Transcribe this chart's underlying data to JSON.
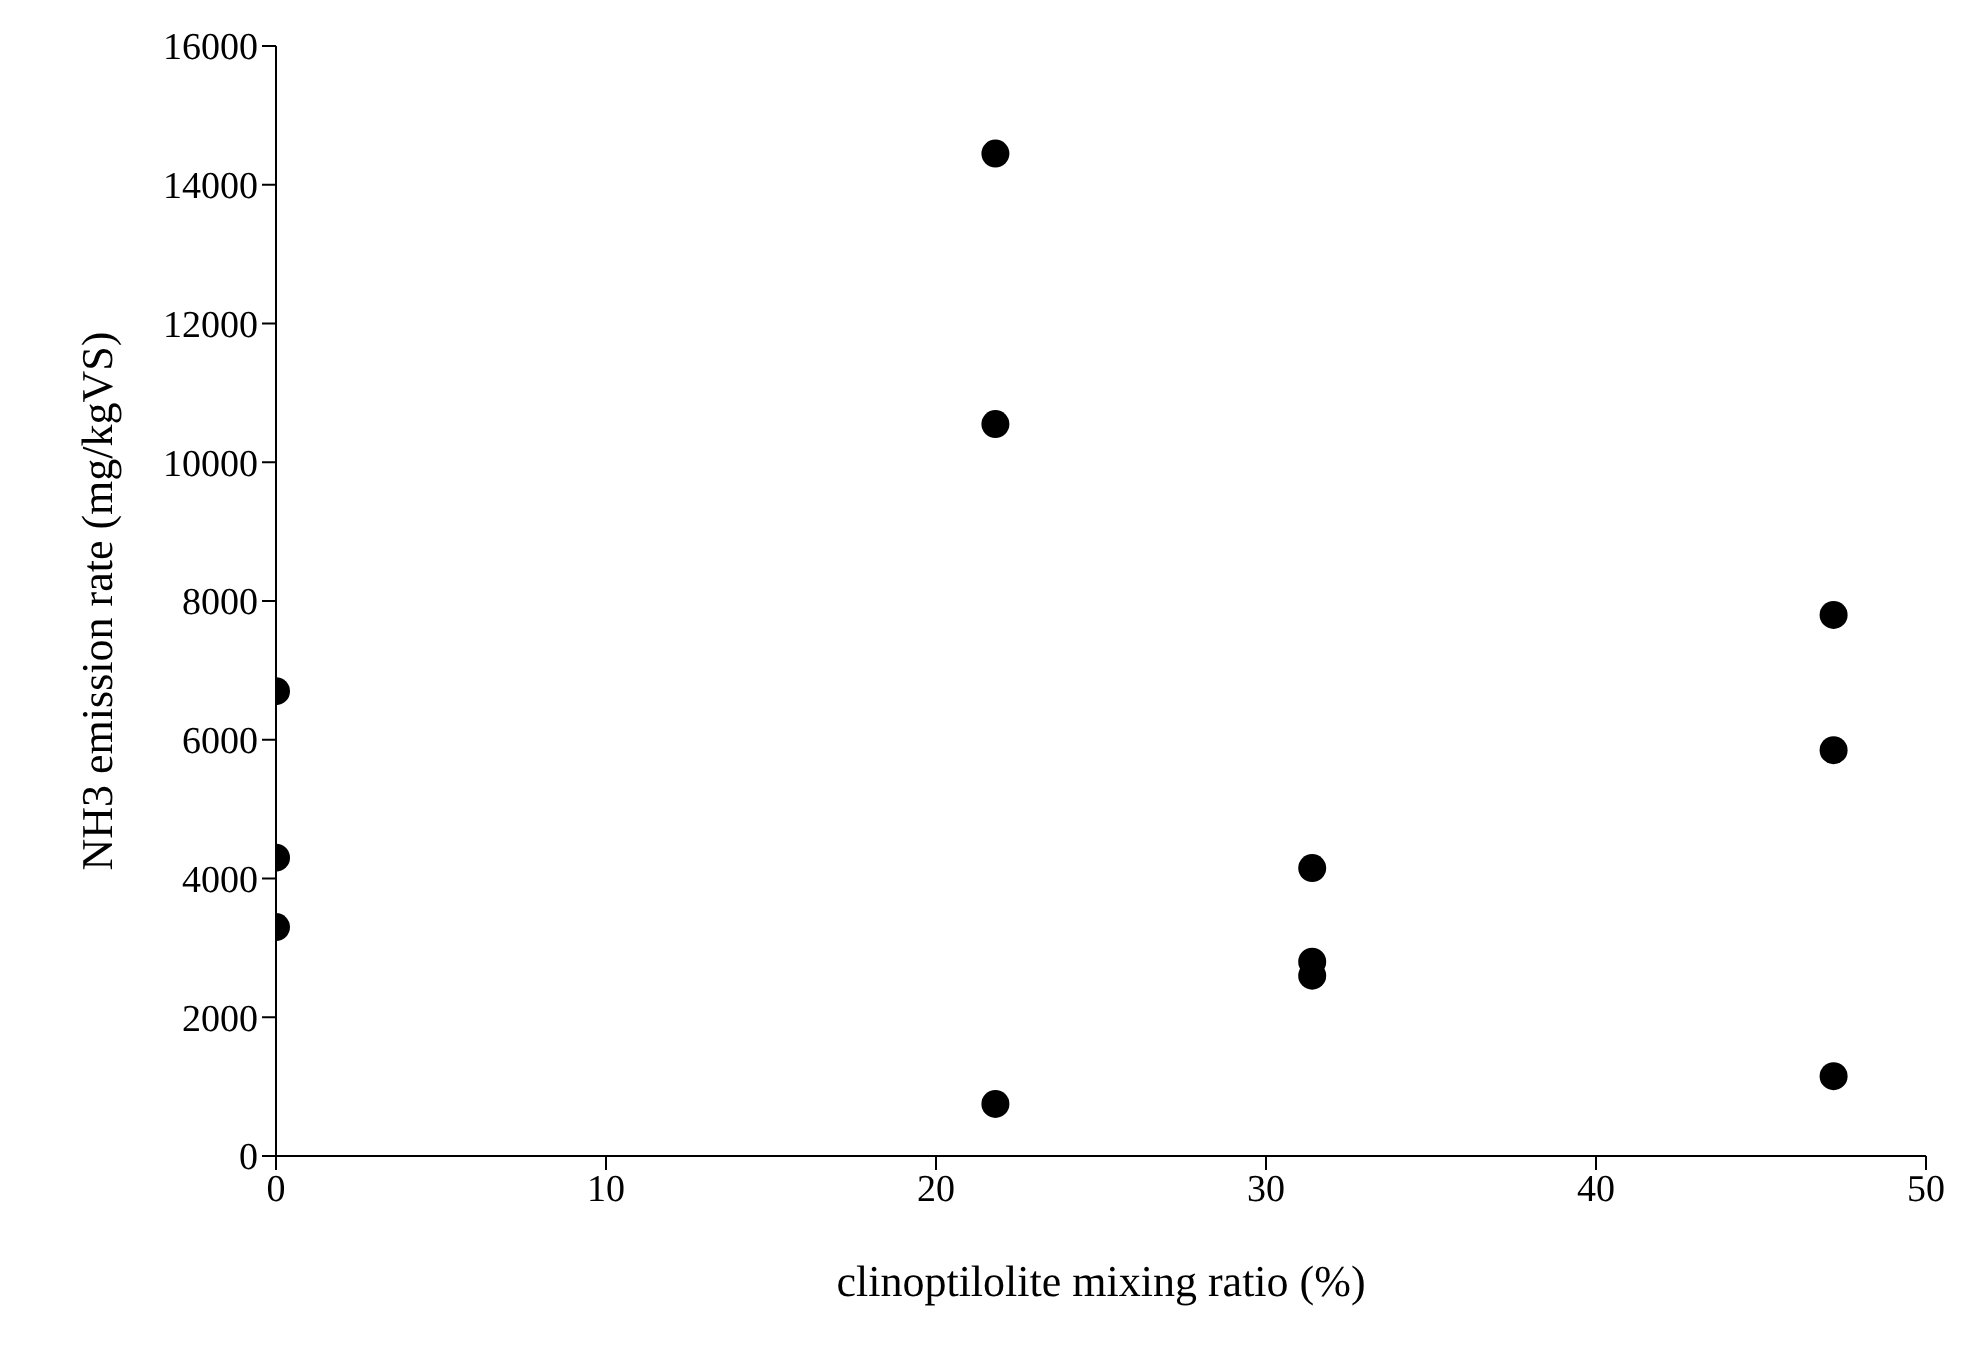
{
  "chart_data": {
    "type": "scatter",
    "xlabel": "clinoptilolite mixing ratio (%)",
    "ylabel": "NH3 emission rate (mg/kgVS)",
    "series": [
      {
        "color": "#000000",
        "x": [
          0,
          0,
          0,
          21.8,
          21.8,
          21.8,
          31.4,
          31.4,
          31.4,
          47.2,
          47.2,
          47.2
        ],
        "values": [
          6700,
          4300,
          3300,
          14450,
          10550,
          750,
          4150,
          2800,
          2600,
          7800,
          5850,
          1150
        ]
      }
    ],
    "xlim": [
      0,
      50
    ],
    "xticks": [
      0,
      10,
      20,
      30,
      40,
      50
    ],
    "ylim": [
      0,
      16000
    ],
    "yticks": [
      0,
      2000,
      4000,
      6000,
      8000,
      10000,
      12000,
      14000,
      16000
    ],
    "grid": false,
    "legend": false,
    "marker": "circle"
  }
}
